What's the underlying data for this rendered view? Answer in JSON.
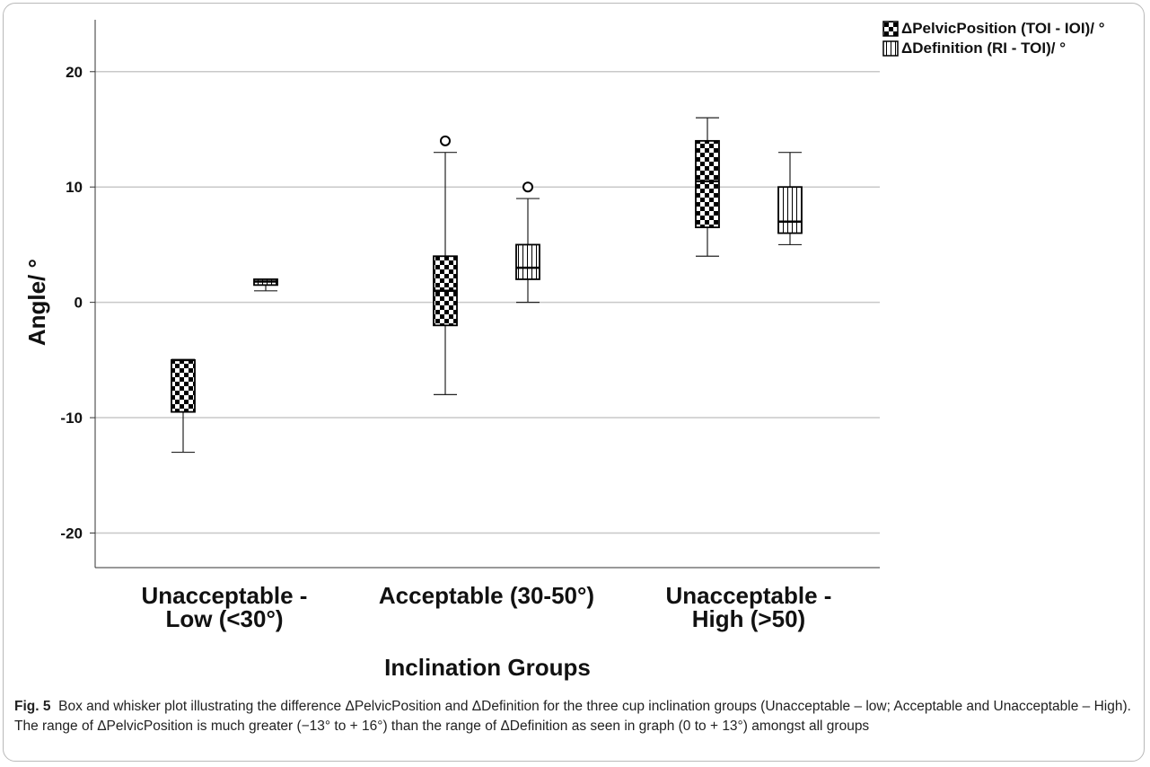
{
  "chart_data": {
    "type": "boxplot",
    "xlabel": "Inclination Groups",
    "ylabel": "Angle/ °",
    "ylim": [
      -23,
      24.5
    ],
    "yticks": [
      20,
      10,
      0,
      -10,
      -20
    ],
    "ytick_labels": [
      "20",
      "10",
      "0",
      "-10",
      "-20"
    ],
    "grid": true,
    "legend_position": "top-right",
    "categories": [
      [
        "Unacceptable -",
        "Low (<30°)"
      ],
      [
        "Acceptable (30-50°)"
      ],
      [
        "Unacceptable -",
        "High (>50)"
      ]
    ],
    "series": [
      {
        "name": "ΔPelvicPosition (TOI - IOI)/ °",
        "pattern": "checker",
        "boxes": [
          {
            "whisker_low": -13,
            "q1": -9.5,
            "median": -5,
            "q3": -5,
            "whisker_high": -5,
            "outliers": []
          },
          {
            "whisker_low": -8,
            "q1": -2,
            "median": 1,
            "q3": 4,
            "whisker_high": 13,
            "outliers": [
              14
            ]
          },
          {
            "whisker_low": 4,
            "q1": 6.5,
            "median": 10.5,
            "q3": 14,
            "whisker_high": 16,
            "outliers": []
          }
        ]
      },
      {
        "name": "ΔDefinition (RI - TOI)/ °",
        "pattern": "vertical-stripes",
        "boxes": [
          {
            "whisker_low": 1,
            "q1": 1.5,
            "median": 1.8,
            "q3": 2,
            "whisker_high": 2,
            "outliers": []
          },
          {
            "whisker_low": 0,
            "q1": 2,
            "median": 3,
            "q3": 5,
            "whisker_high": 9,
            "outliers": [
              10
            ]
          },
          {
            "whisker_low": 5,
            "q1": 6,
            "median": 7,
            "q3": 10,
            "whisker_high": 13,
            "outliers": []
          }
        ]
      }
    ]
  },
  "caption": {
    "label": "Fig. 5",
    "text": "Box and whisker plot illustrating the difference ΔPelvicPosition and ΔDefinition for the three cup inclination groups (Unacceptable – low; Acceptable and Unacceptable – High). The range of ΔPelvicPosition is much greater (−13° to + 16°) than the range of ΔDefinition as seen in graph (0 to + 13°) amongst all groups"
  },
  "colors": {
    "box_dark": "#000000",
    "box_light": "#ffffff",
    "gridline": "#c8c8c8",
    "axis": "#333333"
  }
}
